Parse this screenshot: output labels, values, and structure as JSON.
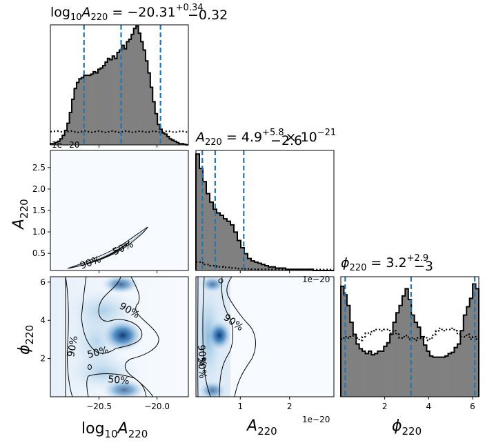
{
  "chart_data": {
    "type": "corner",
    "parameters": [
      "log10A220",
      "A220",
      "phi220"
    ],
    "titles": {
      "log10A220": {
        "param": "log",
        "sub": "10",
        "sym": "A",
        "ssub": "220",
        "value": " = −20.31",
        "sup": "+0.34",
        "sub2": "−0.32",
        "tail": ""
      },
      "A220": {
        "param": "",
        "sub": "",
        "sym": "A",
        "ssub": "220",
        "value": " = 4.9",
        "sup": "+5.8",
        "sub2": "−2.6",
        "tail": "× 10",
        "tailsup": "−21"
      },
      "phi220": {
        "param": "",
        "sub": "",
        "sym": "ϕ",
        "ssub": "220",
        "value": " = 3.2",
        "sup": "+2.9",
        "sub2": "−3",
        "tail": ""
      }
    },
    "axis_labels": {
      "log10A220": {
        "pre": "log",
        "pre_sub": "10",
        "sym": "A",
        "sub": "220"
      },
      "A220": {
        "sym": "A",
        "sub": "220"
      },
      "phi220": {
        "sym": "ϕ",
        "sub": "220"
      }
    },
    "offset_text": "1e−20",
    "ranges": {
      "log10A220": [
        -20.92,
        -19.73
      ],
      "A220": [
        0.1,
        2.9
      ],
      "phi220": [
        0.0,
        6.283
      ]
    },
    "ticks": {
      "log10A220": [
        {
          "v": -20.5,
          "t": "−20.5"
        },
        {
          "v": -20.0,
          "t": "−20.0"
        }
      ],
      "A220_x": [
        {
          "v": 1,
          "t": "1"
        },
        {
          "v": 2,
          "t": "2"
        }
      ],
      "A220_y": [
        {
          "v": 0.5,
          "t": "0.5"
        },
        {
          "v": 1.0,
          "t": "1.0"
        },
        {
          "v": 1.5,
          "t": "1.5"
        },
        {
          "v": 2.0,
          "t": "2.0"
        },
        {
          "v": 2.5,
          "t": "2.5"
        }
      ],
      "phi220": [
        {
          "v": 2,
          "t": "2"
        },
        {
          "v": 4,
          "t": "4"
        },
        {
          "v": 6,
          "t": "6"
        }
      ]
    },
    "quantiles": {
      "log10A220": [
        -20.63,
        -20.31,
        -19.97
      ],
      "A220": [
        0.23,
        0.49,
        1.07
      ],
      "phi220": [
        0.2,
        3.2,
        6.1
      ]
    },
    "hist_log10A220": [
      0.01,
      0.01,
      0.02,
      0.03,
      0.05,
      0.08,
      0.12,
      0.18,
      0.27,
      0.38,
      0.47,
      0.52,
      0.55,
      0.56,
      0.58,
      0.58,
      0.58,
      0.59,
      0.61,
      0.6,
      0.63,
      0.64,
      0.66,
      0.69,
      0.72,
      0.71,
      0.74,
      0.72,
      0.77,
      0.79,
      0.83,
      0.8,
      0.86,
      0.88,
      0.92,
      0.97,
      0.99,
      0.93,
      0.86,
      0.79,
      0.7,
      0.6,
      0.48,
      0.36,
      0.26,
      0.17,
      0.13,
      0.1,
      0.09,
      0.07,
      0.05,
      0.04,
      0.03,
      0.02,
      0.01,
      0.01,
      0.005,
      0.0
    ],
    "hist_A220": [
      0.97,
      0.85,
      0.74,
      0.64,
      0.57,
      0.51,
      0.48,
      0.46,
      0.43,
      0.41,
      0.38,
      0.32,
      0.25,
      0.19,
      0.14,
      0.1,
      0.08,
      0.07,
      0.06,
      0.05,
      0.04,
      0.03,
      0.03,
      0.02,
      0.02,
      0.02,
      0.01,
      0.01,
      0.01,
      0.01,
      0.01,
      0.01,
      0.01,
      0.01,
      0.0,
      0.0,
      0.0,
      0.0,
      0.0,
      0.0
    ],
    "hist_phi220": [
      0.92,
      0.85,
      0.76,
      0.62,
      0.52,
      0.44,
      0.4,
      0.38,
      0.36,
      0.38,
      0.35,
      0.36,
      0.38,
      0.38,
      0.42,
      0.45,
      0.52,
      0.62,
      0.7,
      0.76,
      0.84,
      0.9,
      0.81,
      0.68,
      0.62,
      0.58,
      0.5,
      0.43,
      0.38,
      0.34,
      0.33,
      0.33,
      0.33,
      0.33,
      0.34,
      0.36,
      0.37,
      0.41,
      0.44,
      0.55,
      0.68,
      0.75,
      0.82,
      0.94,
      0.9
    ],
    "prior_log10A220": 0.11,
    "prior_A220": [
      0.07,
      0.05,
      0.04,
      0.03,
      0.025,
      0.02,
      0.016,
      0.013,
      0.011,
      0.01,
      0.01,
      0.009,
      0.009,
      0.008,
      0.008,
      0.008,
      0.008,
      0.008,
      0.008,
      0.008
    ],
    "prior_phi220": [
      0.48,
      0.5,
      0.49,
      0.5,
      0.51,
      0.49,
      0.47,
      0.5,
      0.53,
      0.52,
      0.55,
      0.56,
      0.56,
      0.55,
      0.56,
      0.56,
      0.53,
      0.55,
      0.52,
      0.49,
      0.5,
      0.51,
      0.48,
      0.49,
      0.47,
      0.49,
      0.48,
      0.5,
      0.47,
      0.49,
      0.52,
      0.55,
      0.57,
      0.55,
      0.56,
      0.56,
      0.57,
      0.55,
      0.52,
      0.5,
      0.5,
      0.52,
      0.48,
      0.5,
      0.48
    ],
    "contour_labels": [
      "90%",
      "50%",
      "90%",
      "50%",
      "90%",
      "50%",
      "90%",
      "50%"
    ],
    "y_label_left_mid": {
      "sym": "A",
      "sub": "220"
    },
    "y_label_left_bot": {
      "sym": "ϕ",
      "sub": "220"
    }
  }
}
